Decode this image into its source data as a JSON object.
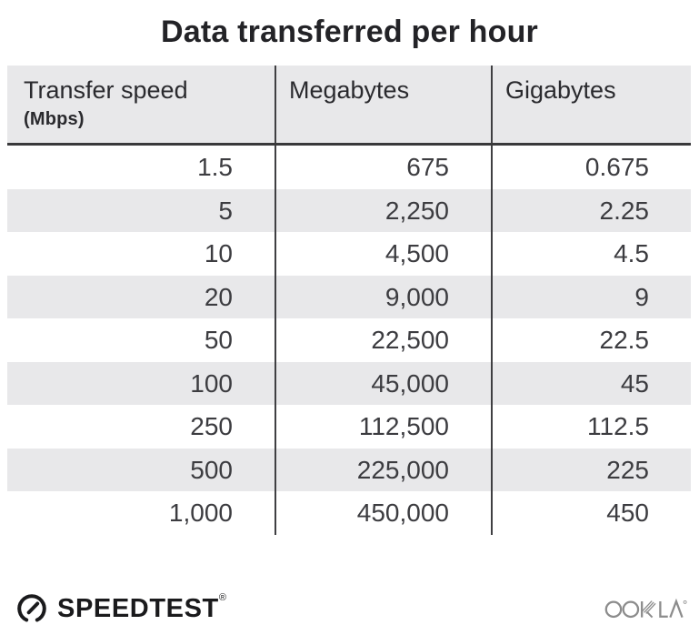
{
  "title": "Data transferred per hour",
  "table": {
    "headers": [
      {
        "label": "Transfer speed",
        "sublabel": "(Mbps)"
      },
      {
        "label": "Megabytes"
      },
      {
        "label": "Gigabytes"
      }
    ],
    "rows": [
      [
        "1.5",
        "675",
        "0.675"
      ],
      [
        "5",
        "2,250",
        "2.25"
      ],
      [
        "10",
        "4,500",
        "4.5"
      ],
      [
        "20",
        "9,000",
        "9"
      ],
      [
        "50",
        "22,500",
        "22.5"
      ],
      [
        "100",
        "45,000",
        "45"
      ],
      [
        "250",
        "112,500",
        "112.5"
      ],
      [
        "500",
        "225,000",
        "225"
      ],
      [
        "1,000",
        "450,000",
        "450"
      ]
    ]
  },
  "footer": {
    "speedtest_label": "SPEEDTEST",
    "speedtest_trademark": "®",
    "ookla_label": "OOKLA"
  },
  "colors": {
    "header_bg": "#e8e8ea",
    "row_alt_bg": "#e8e8ea",
    "header_underline": "#39393b",
    "column_divider": "#3f3f42",
    "title_text": "#232327",
    "number_text": "#3c3c40",
    "speedtest_black": "#1a1a1c",
    "ookla_gray": "#8c8c8c"
  },
  "icons": {
    "speedtest_gauge": "gauge-icon",
    "ookla_logo": "ookla-logo"
  },
  "chart_data": {
    "type": "table",
    "title": "Data transferred per hour",
    "columns": [
      "Transfer speed (Mbps)",
      "Megabytes",
      "Gigabytes"
    ],
    "rows": [
      [
        1.5,
        675,
        0.675
      ],
      [
        5,
        2250,
        2.25
      ],
      [
        10,
        4500,
        4.5
      ],
      [
        20,
        9000,
        9
      ],
      [
        50,
        22500,
        22.5
      ],
      [
        100,
        45000,
        45
      ],
      [
        250,
        112500,
        112.5
      ],
      [
        500,
        225000,
        225
      ],
      [
        1000,
        450000,
        450
      ]
    ]
  }
}
